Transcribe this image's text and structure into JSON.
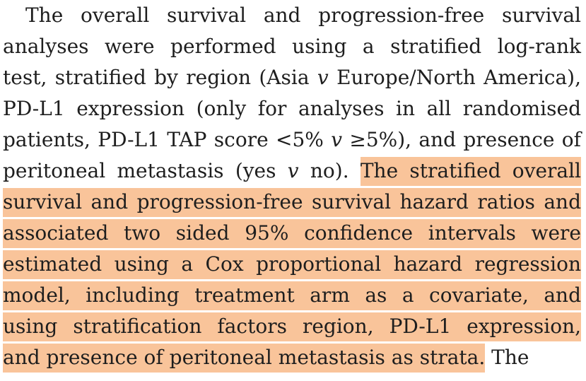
{
  "highlight_color": "#f9c49a",
  "paragraph": {
    "lines": [
      {
        "pre": "The overall survival and progression-free survival"
      },
      {
        "pre": "analyses were performed using a stratified log-rank"
      },
      {
        "pre": "test, stratified by region (Asia ",
        "it": "v",
        "post": " Europe/North America),"
      },
      {
        "pre": "PD-L1 expression (only for analyses in all randomised"
      },
      {
        "pre": "patients, PD-L1 TAP score <5% ",
        "it": "v",
        "post": " ≥5%), and presence of"
      },
      {
        "pre": "peritoneal metastasis (yes ",
        "it": "v",
        "post": " no). ",
        "hl": "The stratified overall"
      },
      {
        "hl": "survival and progression-free survival hazard ratios and"
      },
      {
        "hl": "associated two sided 95% confidence intervals were"
      },
      {
        "hl": "estimated using a Cox proportional hazard regression"
      },
      {
        "hl": "model, including treatment arm as a covariate, and"
      },
      {
        "hl": "using stratification factors region, PD-L1 expression,"
      },
      {
        "hl": "and presence of peritoneal metastasis as strata.",
        "post": " The"
      }
    ]
  }
}
